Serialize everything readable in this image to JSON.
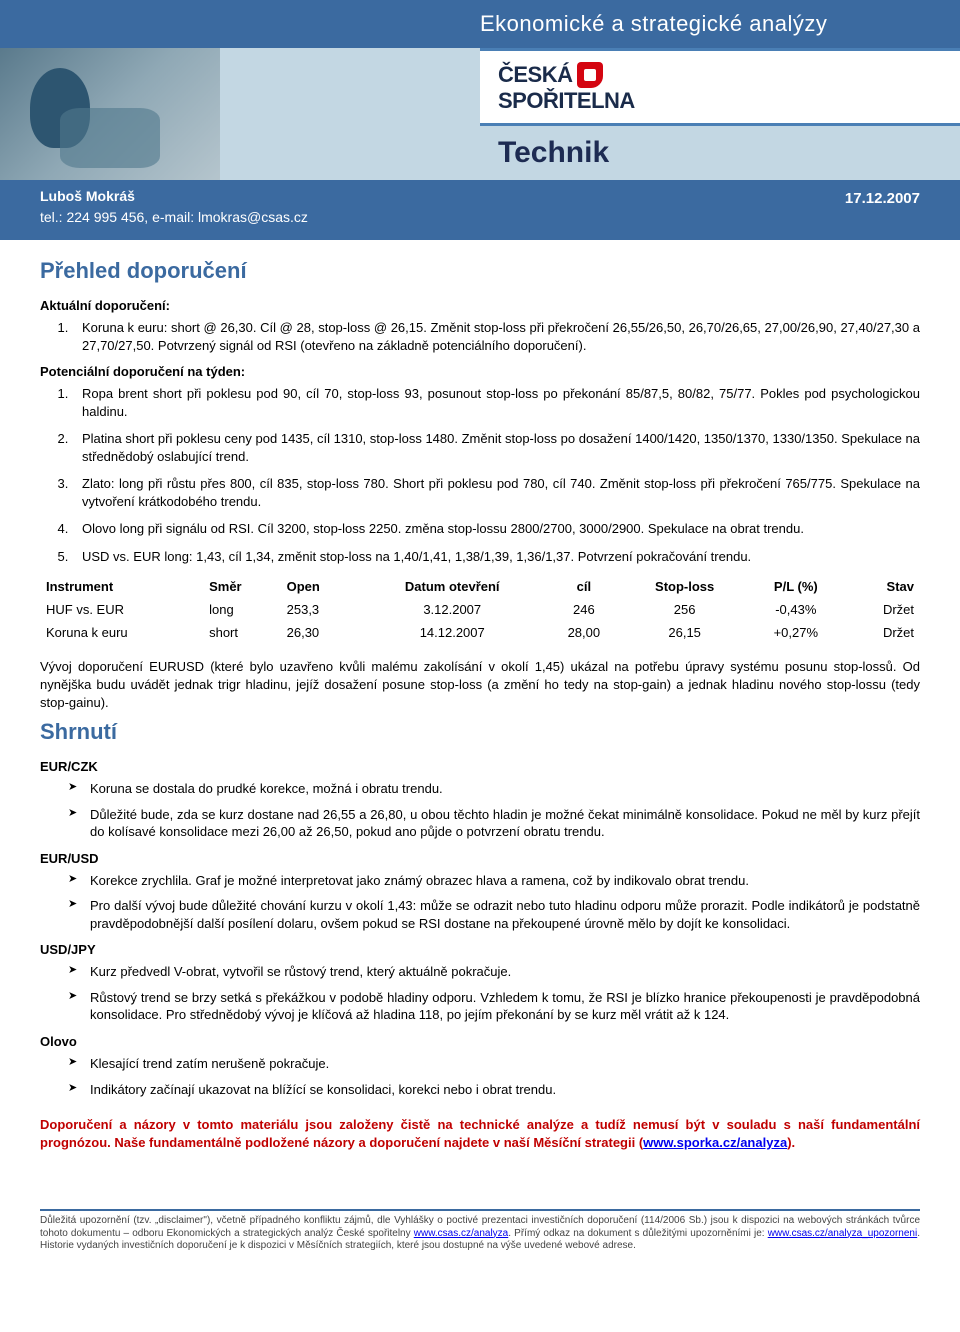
{
  "header": {
    "top_title": "Ekonomické a strategické analýzy",
    "logo_line1": "ČESKÁ",
    "logo_line2": "SPOŘITELNA",
    "section_title": "Technik"
  },
  "author": {
    "name": "Luboš Mokráš",
    "contact": "tel.: 224 995 456, e-mail: lmokras@csas.cz",
    "date": "17.12.2007"
  },
  "overview": {
    "title": "Přehled doporučení",
    "current_heading": "Aktuální doporučení:",
    "current_items": [
      "Koruna k euru: short @ 26,30. Cíl @ 28, stop-loss @ 26,15. Změnit stop-loss při překročení 26,55/26,50, 26,70/26,65, 27,00/26,90, 27,40/27,30 a 27,70/27,50. Potvrzený signál od RSI (otevřeno na základně potenciálního doporučení)."
    ],
    "potential_heading": "Potenciální doporučení na týden:",
    "potential_items": [
      "Ropa brent short při poklesu pod 90, cíl 70, stop-loss 93, posunout stop-loss po překonání 85/87,5, 80/82, 75/77. Pokles pod psychologickou haldinu.",
      "Platina short při poklesu ceny pod 1435, cíl 1310, stop-loss 1480. Změnit stop-loss po dosažení 1400/1420, 1350/1370, 1330/1350. Spekulace na střednědobý oslabující trend.",
      "Zlato: long při růstu přes 800, cíl 835, stop-loss 780. Short při poklesu pod 780, cíl 740. Změnit stop-loss při překročení 765/775. Spekulace na vytvoření krátkodobého trendu.",
      "Olovo long při signálu od RSI. Cíl 3200, stop-loss 2250. změna stop-lossu 2800/2700, 3000/2900. Spekulace na obrat trendu.",
      "USD vs. EUR long: 1,43, cíl 1,34, změnit stop-loss na 1,40/1,41, 1,38/1,39, 1,36/1,37. Potvrzení pokračování trendu."
    ]
  },
  "table": {
    "columns": [
      "Instrument",
      "Směr",
      "Open",
      "Datum otevření",
      "cíl",
      "Stop-loss",
      "P/L (%)",
      "Stav"
    ],
    "rows": [
      [
        "HUF vs. EUR",
        "long",
        "253,3",
        "3.12.2007",
        "246",
        "256",
        "-0,43%",
        "Držet"
      ],
      [
        "Koruna k euru",
        "short",
        "26,30",
        "14.12.2007",
        "28,00",
        "26,15",
        "+0,27%",
        "Držet"
      ]
    ]
  },
  "post_table_para": "Vývoj doporučení EURUSD (které bylo uzavřeno kvůli malému zakolísání v okolí 1,45) ukázal na potřebu úpravy systému posunu stop-lossů. Od nynějška budu uvádět jednak trigr hladinu, jejíž dosažení posune stop-loss (a změní ho tedy na stop-gain) a jednak hladinu nového stop-lossu (tedy stop-gainu).",
  "summary": {
    "title": "Shrnutí",
    "sections": [
      {
        "heading": "EUR/CZK",
        "bullets": [
          "Koruna se dostala do prudké korekce, možná i obratu trendu.",
          "Důležité bude, zda se kurz dostane nad 26,55 a 26,80, u obou těchto hladin je možné čekat minimálně konsolidace. Pokud ne měl by kurz přejít do kolísavé konsolidace mezi 26,00 až 26,50, pokud ano půjde o potvrzení obratu trendu."
        ]
      },
      {
        "heading": "EUR/USD",
        "bullets": [
          "Korekce zrychlila. Graf je možné interpretovat jako známý obrazec hlava a ramena, což by indikovalo obrat trendu.",
          "Pro další vývoj bude důležité chování kurzu v okolí 1,43: může se odrazit nebo tuto hladinu odporu může prorazit. Podle indikátorů je podstatně pravděpodobnější další posílení dolaru, ovšem pokud se RSI dostane na překoupené úrovně mělo by dojít ke konsolidaci."
        ]
      },
      {
        "heading": "USD/JPY",
        "bullets": [
          "Kurz předvedl V-obrat, vytvořil se růstový trend, který aktuálně pokračuje.",
          "Růstový trend se brzy setká s překážkou v podobě hladiny odporu. Vzhledem k tomu, že RSI je blízko hranice překoupenosti je pravděpodobná konsolidace. Pro střednědobý vývoj je klíčová až hladina 118, po jejím překonání by se kurz měl vrátit až k 124."
        ]
      },
      {
        "heading": "Olovo",
        "bullets": [
          "Klesající trend zatím nerušeně pokračuje.",
          "Indikátory začínají ukazovat na blížící se konsolidaci, korekci nebo i obrat trendu."
        ]
      }
    ]
  },
  "red_note": {
    "text": "Doporučení a názory v tomto materiálu jsou založeny čistě na technické analýze a tudíž nemusí být v souladu s naší fundamentální prognózou. Naše fundamentálně podložené názory a doporučení najdete v naší Měsíční strategii (",
    "link_text": "www.sporka.cz/analyza",
    "text_after": ")."
  },
  "footer": {
    "text1": "Důležitá upozornění (tzv. „disclaimer\"), včetně případného konfliktu zájmů, dle Vyhlášky o poctivé prezentaci investičních doporučení (114/2006 Sb.) jsou k dispozici na webových stránkách tvůrce tohoto dokumentu – odboru Ekonomických a strategických analýz České spořitelny ",
    "link1": "www.csas.cz/analyza",
    "text2": ". Přímý odkaz na dokument s důležitými upozorněními je: ",
    "link2": "www.csas.cz/analyza_upozorneni",
    "text3": ". Historie vydaných investičních doporučení je k dispozici v Měsíčních strategiích, které jsou dostupné na výše uvedené webové adrese."
  }
}
